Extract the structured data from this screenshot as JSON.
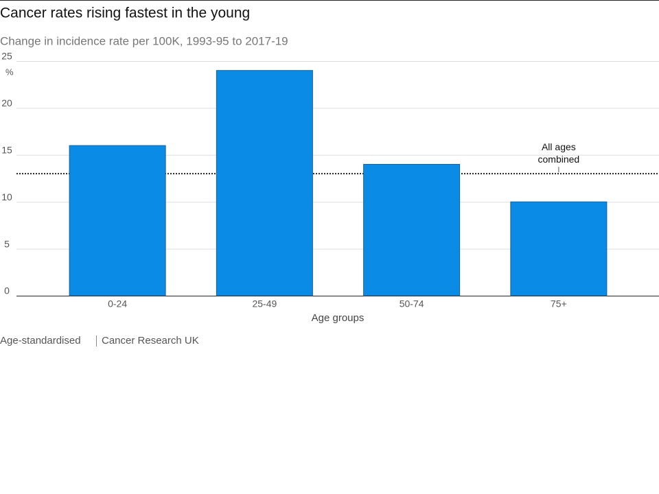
{
  "chart_data": {
    "type": "bar",
    "title": "Cancer rates rising fastest in the young",
    "subtitle": "Change in incidence rate per 100K, 1993-95 to 2017-19",
    "y_unit": "%",
    "x_label": "Age groups",
    "categories": [
      "0-24",
      "25-49",
      "50-74",
      "75+"
    ],
    "values": [
      16,
      24,
      14,
      10
    ],
    "color": "#0a8be6",
    "ylim": [
      0,
      25
    ],
    "yticks": [
      0,
      5,
      10,
      15,
      20,
      25
    ],
    "grid": true,
    "reference_line": {
      "value": 13,
      "label": [
        "All ages",
        "combined"
      ]
    },
    "notes": [
      "Age-standardised",
      "Cancer Research UK"
    ]
  }
}
